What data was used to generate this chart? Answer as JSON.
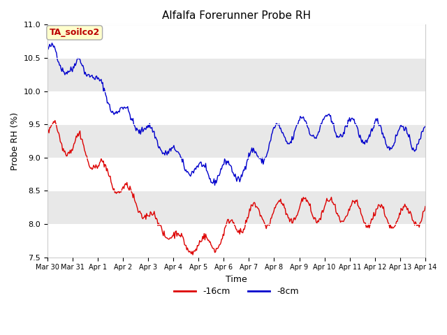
{
  "title": "Alfalfa Forerunner Probe RH",
  "xlabel": "Time",
  "ylabel": "Probe RH (%)",
  "ylim": [
    7.5,
    11.0
  ],
  "annotation_text": "TA_soilco2",
  "annotation_color": "#bb0000",
  "annotation_bg": "#ffffcc",
  "annotation_border": "#aaaaaa",
  "line_16cm_color": "#dd0000",
  "line_8cm_color": "#0000cc",
  "legend_16cm": "-16cm",
  "legend_8cm": "-8cm",
  "fig_bg_color": "#ffffff",
  "plot_bg_color": "#ffffff",
  "x_tick_labels": [
    "Mar 30",
    "Mar 31",
    "Apr 1",
    "Apr 2",
    "Apr 3",
    "Apr 4",
    "Apr 5",
    "Apr 6",
    "Apr 7",
    "Apr 8",
    "Apr 9",
    "Apr 10",
    "Apr 11",
    "Apr 12",
    "Apr 13",
    "Apr 14"
  ],
  "yticks": [
    7.5,
    8.0,
    8.5,
    9.0,
    9.5,
    10.0,
    10.5,
    11.0
  ],
  "band_colors": [
    "#ffffff",
    "#e8e8e8"
  ],
  "n_points": 500
}
